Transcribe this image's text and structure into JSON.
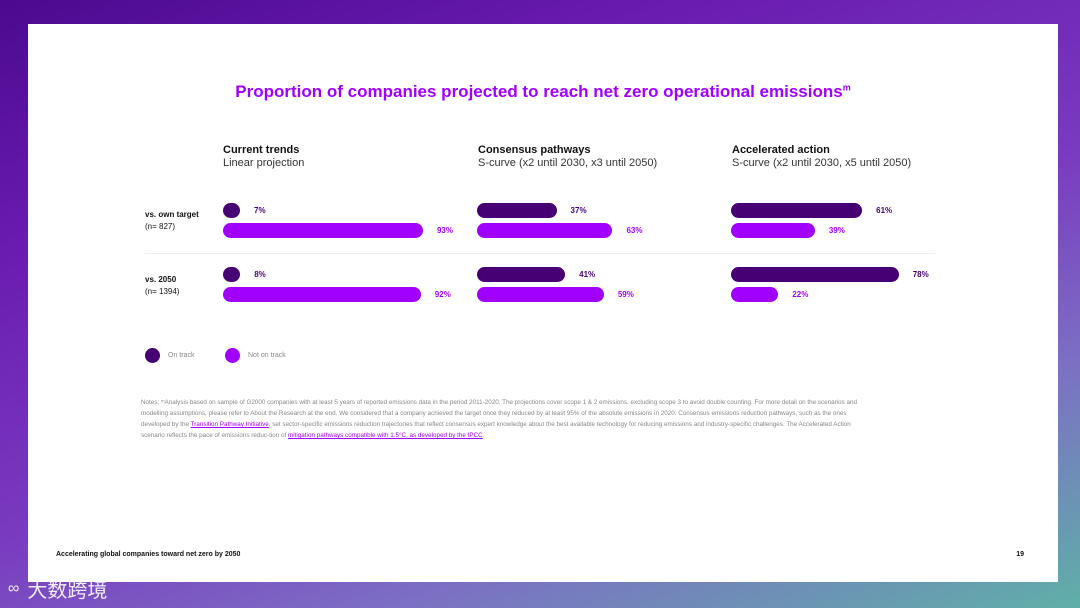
{
  "title": "Proportion of companies projected to reach net zero operational emissions",
  "title_sup": "m",
  "columns": [
    {
      "heading": "Current trends",
      "sub": "Linear projection"
    },
    {
      "heading": "Consensus pathways",
      "sub": "S-curve (x2 until 2030, x3 until 2050)"
    },
    {
      "heading": "Accelerated action",
      "sub": "S-curve (x2 until 2030, x5 until 2050)"
    }
  ],
  "rows": [
    {
      "label": "vs. own target",
      "n": "(n= 827)"
    },
    {
      "label": "vs. 2050",
      "n": "(n= 1394)"
    }
  ],
  "chart_data": {
    "type": "bar",
    "orientation": "horizontal",
    "title": "Proportion of companies projected to reach net zero operational emissions",
    "panels": [
      "Current trends",
      "Consensus pathways",
      "Accelerated action"
    ],
    "categories": [
      "vs. own target",
      "vs. 2050"
    ],
    "series": [
      {
        "name": "On track",
        "color": "#460073",
        "values": [
          [
            7,
            8
          ],
          [
            37,
            41
          ],
          [
            61,
            78
          ]
        ]
      },
      {
        "name": "Not on track",
        "color": "#a100ff",
        "values": [
          [
            93,
            92
          ],
          [
            63,
            59
          ],
          [
            39,
            22
          ]
        ]
      }
    ],
    "unit": "%",
    "xlim": [
      0,
      100
    ],
    "labels": [
      [
        [
          "7%",
          "93%"
        ],
        [
          "8%",
          "92%"
        ]
      ],
      [
        [
          "37%",
          "63%"
        ],
        [
          "41%",
          "59%"
        ]
      ],
      [
        [
          "61%",
          "39%"
        ],
        [
          "78%",
          "22%"
        ]
      ]
    ]
  },
  "legend": [
    {
      "label": "On track",
      "color": "#460073"
    },
    {
      "label": "Not on track",
      "color": "#a100ff"
    }
  ],
  "notes": {
    "p1": "Notes: ᵐAnalysis based on sample of G2000 companies with at least 5 years of reported emissions data in the period 2011-2020. The projections cover scope 1 & 2 emissions, excluding scope 3 to avoid double counting. For more detail on the scenarios and modelling assumptions, please refer to About the Research at the end. We considered that a company achieved the target once they reduced by at least 95% of the absolute emissions in 2020. Consensus emissions reduction pathways, such as the ones developed by the ",
    "link1": "Transition Pathway Initiative",
    "p2": ", set sector-specific emissions reduction trajectories that reflect consensus expert knowledge about the best available technology for reducing emissions and industry-specific challenges. The Accelerated Action scenario reflects the pace of emissions reduc-tion of ",
    "link2": "mitigation pathways compatible with 1.5°C, as developed by the IPCC",
    "p3": "."
  },
  "footer": "Accelerating global companies toward net zero by 2050",
  "page_number": "19",
  "watermark": "大数跨境"
}
